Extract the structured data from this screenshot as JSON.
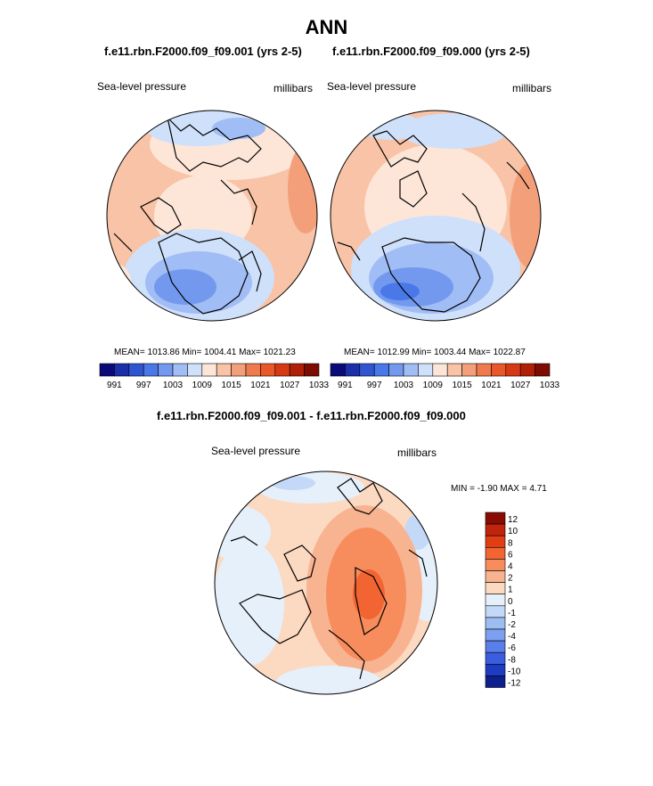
{
  "figure": {
    "title": "ANN",
    "left_panel": {
      "case_title": "f.e11.rbn.F2000.f09_f09.001 (yrs 2-5)",
      "variable": "Sea-level pressure",
      "units": "millibars",
      "stats": "MEAN= 1013.86  Min= 1004.41  Max= 1021.23"
    },
    "right_panel": {
      "case_title": "f.e11.rbn.F2000.f09_f09.000 (yrs 2-5)",
      "variable": "Sea-level pressure",
      "units": "millibars",
      "stats": "MEAN= 1012.99  Min= 1003.44  Max= 1022.87"
    },
    "diff_panel": {
      "title": "f.e11.rbn.F2000.f09_f09.001 - f.e11.rbn.F2000.f09_f09.000",
      "variable": "Sea-level pressure",
      "units": "millibars",
      "stats": "MIN =  -1.90 MAX =   4.71"
    }
  },
  "colorbars": {
    "abs": {
      "colors": [
        "#0a0a78",
        "#1a2fa8",
        "#2f55d0",
        "#4a78e8",
        "#7399ee",
        "#a1bdf5",
        "#cfe0fa",
        "#fde6d8",
        "#f8c3a6",
        "#f3a07a",
        "#ef7a4d",
        "#e8582a",
        "#d53a14",
        "#b02008",
        "#7d0c02"
      ],
      "labels": [
        "991",
        "997",
        "1003",
        "1009",
        "1015",
        "1021",
        "1027",
        "1033"
      ]
    },
    "diff": {
      "colors": [
        "#8a0b02",
        "#c0240c",
        "#e23e14",
        "#f26532",
        "#f78c5d",
        "#f8b391",
        "#fcd9c1",
        "#e6f0fb",
        "#c3d9f7",
        "#9dbdf2",
        "#7c9ff0",
        "#5a7fea",
        "#3a5ede",
        "#1e3cc2",
        "#0e1f8e"
      ],
      "labels": [
        "12",
        "10",
        "8",
        "6",
        "4",
        "2",
        "1",
        "0",
        "-1",
        "-2",
        "-4",
        "-6",
        "-8",
        "-10",
        "-12"
      ]
    }
  }
}
